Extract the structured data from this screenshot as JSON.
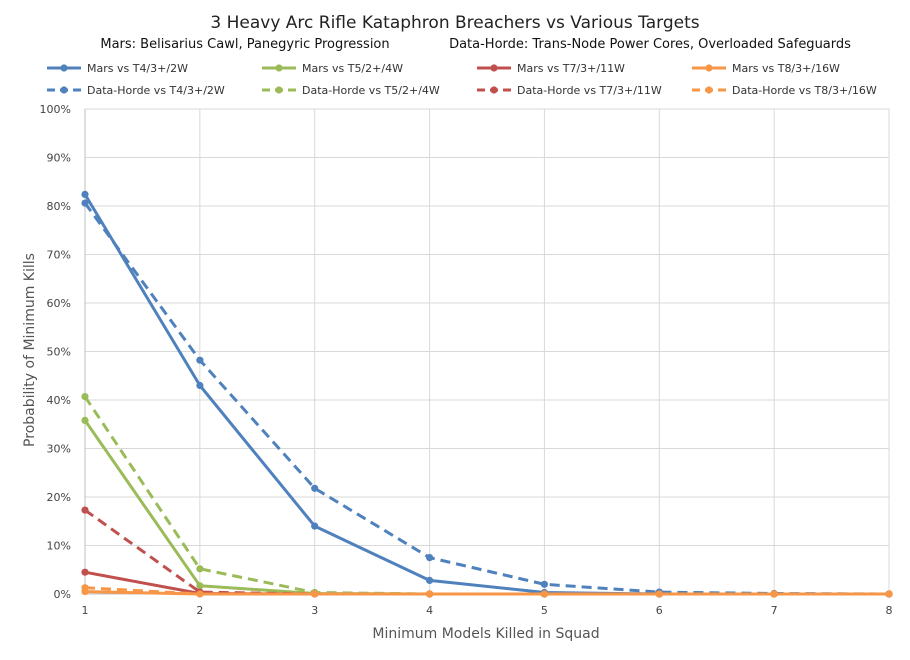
{
  "chart_data": {
    "type": "line",
    "title": "3 Heavy Arc Rifle Kataphron Breachers vs Various Targets",
    "subtitle_left": "Mars: Belisarius Cawl, Panegyric Progression",
    "subtitle_right": "Data-Horde: Trans-Node Power Cores, Overloaded Safeguards",
    "xlabel": "Minimum Models Killed in Squad",
    "ylabel": "Probability of Minimum Kills",
    "x": [
      1,
      2,
      3,
      4,
      5,
      6,
      7,
      8
    ],
    "xlim": [
      1,
      8
    ],
    "ylim": [
      0,
      100
    ],
    "y_ticks": [
      "0%",
      "10%",
      "20%",
      "30%",
      "40%",
      "50%",
      "60%",
      "70%",
      "80%",
      "90%",
      "100%"
    ],
    "x_ticks": [
      "1",
      "2",
      "3",
      "4",
      "5",
      "6",
      "7",
      "8"
    ],
    "grid": true,
    "legend_position": "top",
    "series": [
      {
        "name": "Mars vs T4/3+/2W",
        "color": "#4f81bd",
        "dash": false,
        "values": [
          82.4,
          43.0,
          14.0,
          2.8,
          0.3,
          0.0,
          0.0,
          0.0
        ]
      },
      {
        "name": "Mars vs T5/2+/4W",
        "color": "#9bbb59",
        "dash": false,
        "values": [
          35.8,
          1.7,
          0.1,
          0.0,
          0.0,
          0.0,
          0.0,
          0.0
        ]
      },
      {
        "name": "Mars vs T7/3+/11W",
        "color": "#c0504d",
        "dash": false,
        "values": [
          4.5,
          0.1,
          0.0,
          0.0,
          0.0,
          0.0,
          0.0,
          0.0
        ]
      },
      {
        "name": "Mars vs T8/3+/16W",
        "color": "#f79646",
        "dash": false,
        "values": [
          0.5,
          0.0,
          0.0,
          0.0,
          0.0,
          0.0,
          0.0,
          0.0
        ]
      },
      {
        "name": "Data-Horde vs T4/3+/2W",
        "color": "#4f81bd",
        "dash": true,
        "values": [
          80.6,
          48.2,
          21.8,
          7.5,
          2.0,
          0.4,
          0.1,
          0.0
        ]
      },
      {
        "name": "Data-Horde vs T5/2+/4W",
        "color": "#9bbb59",
        "dash": true,
        "values": [
          40.7,
          5.2,
          0.3,
          0.0,
          0.0,
          0.0,
          0.0,
          0.0
        ]
      },
      {
        "name": "Data-Horde vs T7/3+/11W",
        "color": "#c0504d",
        "dash": true,
        "values": [
          17.3,
          0.4,
          0.0,
          0.0,
          0.0,
          0.0,
          0.0,
          0.0
        ]
      },
      {
        "name": "Data-Horde vs T8/3+/16W",
        "color": "#f79646",
        "dash": true,
        "values": [
          1.3,
          0.0,
          0.0,
          0.0,
          0.0,
          0.0,
          0.0,
          0.0
        ]
      }
    ]
  }
}
